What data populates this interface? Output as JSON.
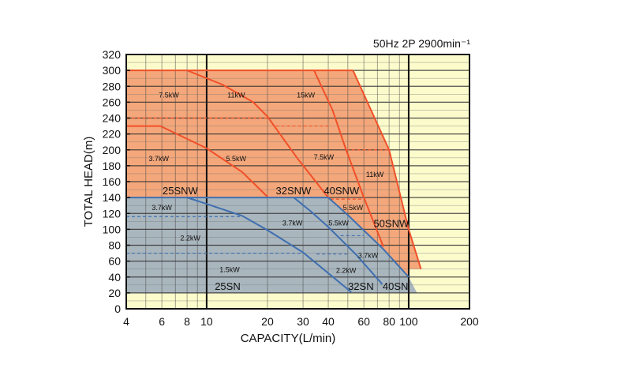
{
  "chart_data": {
    "type": "line",
    "title": "50Hz 2P 2900min⁻¹",
    "xlabel": "CAPACITY(L/min)",
    "ylabel": "TOTAL HEAD(m)",
    "xscale": "log",
    "xlim": [
      4,
      200
    ],
    "ylim": [
      0,
      320
    ],
    "grid": true,
    "xticks": [
      4,
      6,
      8,
      10,
      20,
      30,
      40,
      60,
      80,
      100,
      200
    ],
    "xtick_labels": [
      "4",
      "6",
      "8",
      "10",
      "20",
      "30",
      "40",
      "60",
      "80",
      "100",
      "200"
    ],
    "yticks": [
      0,
      20,
      40,
      60,
      80,
      100,
      120,
      140,
      160,
      180,
      200,
      220,
      240,
      260,
      280,
      300,
      320
    ],
    "colors": {
      "background": "#fbfbcc",
      "snw_region": "#f4a77a",
      "sn_region": "#a9b6be",
      "snw_line": "#f0502a",
      "sn_line": "#3f6fb0",
      "grid": "#333333"
    },
    "regions": [
      {
        "name": "SNW",
        "color": "snw_region",
        "points": [
          [
            4,
            300
          ],
          [
            53,
            300
          ],
          [
            80,
            200
          ],
          [
            100,
            100
          ],
          [
            115,
            50
          ],
          [
            100,
            50
          ],
          [
            100,
            40
          ],
          [
            4,
            40
          ]
        ]
      },
      {
        "name": "SN",
        "color": "sn_region",
        "points": [
          [
            4,
            140
          ],
          [
            40,
            140
          ],
          [
            50,
            118
          ],
          [
            75,
            75
          ],
          [
            100,
            40
          ],
          [
            110,
            20
          ],
          [
            4,
            20
          ]
        ]
      }
    ],
    "curves": [
      {
        "name": "25SNW 3.7kW limit",
        "color": "snw_line",
        "points": [
          [
            4,
            230
          ],
          [
            5.9,
            230
          ],
          [
            10,
            202
          ],
          [
            15,
            172
          ],
          [
            20,
            141
          ]
        ]
      },
      {
        "name": "25SNW/32SNW limit",
        "color": "snw_line",
        "points": [
          [
            8,
            300
          ],
          [
            12,
            282
          ],
          [
            17,
            260
          ],
          [
            20,
            242
          ],
          [
            28,
            190
          ],
          [
            40,
            140
          ]
        ]
      },
      {
        "name": "40SNW limit",
        "color": "snw_line",
        "points": [
          [
            34,
            300
          ],
          [
            42,
            250
          ],
          [
            49,
            200
          ],
          [
            60,
            140
          ],
          [
            75,
            78
          ]
        ]
      },
      {
        "name": "50SNW limit",
        "color": "snw_line",
        "points": [
          [
            53,
            300
          ],
          [
            80,
            200
          ],
          [
            100,
            100
          ],
          [
            115,
            50
          ]
        ]
      },
      {
        "name": "SNW top",
        "color": "snw_line",
        "points": [
          [
            4,
            300
          ],
          [
            53,
            300
          ]
        ]
      },
      {
        "name": "25SN limit",
        "color": "sn_line",
        "points": [
          [
            8,
            140
          ],
          [
            10,
            132
          ],
          [
            15,
            117
          ],
          [
            20,
            99
          ],
          [
            30,
            71
          ],
          [
            52,
            21
          ]
        ]
      },
      {
        "name": "32SN limit",
        "color": "sn_line",
        "points": [
          [
            27,
            140
          ],
          [
            33,
            122
          ],
          [
            40,
            103
          ],
          [
            55,
            68
          ],
          [
            74,
            31
          ]
        ]
      },
      {
        "name": "40SN limit",
        "color": "sn_line",
        "points": [
          [
            40,
            140
          ],
          [
            50,
            118
          ],
          [
            75,
            75
          ],
          [
            100,
            40
          ]
        ]
      },
      {
        "name": "SN top",
        "color": "sn_line",
        "points": [
          [
            4,
            140
          ],
          [
            40,
            140
          ]
        ]
      }
    ],
    "dashed": [
      {
        "color": "snw_line",
        "y": 240,
        "x": [
          4,
          20
        ]
      },
      {
        "color": "snw_line",
        "y": 230,
        "x": [
          22,
          40
        ]
      },
      {
        "color": "snw_line",
        "y": 200,
        "x": [
          49,
          80
        ]
      },
      {
        "color": "snw_line",
        "y": 138,
        "x": [
          41,
          60
        ]
      },
      {
        "color": "sn_line",
        "y": 116,
        "x": [
          4,
          15
        ]
      },
      {
        "color": "sn_line",
        "y": 92,
        "x": [
          46,
          60
        ]
      },
      {
        "color": "sn_line",
        "y": 70,
        "x": [
          4,
          30
        ]
      },
      {
        "color": "sn_line",
        "y": 69,
        "x": [
          35,
          51
        ]
      }
    ],
    "annotations": [
      {
        "text": "7.5kW",
        "x": 6.5,
        "y": 270,
        "kind": "lbl"
      },
      {
        "text": "11kW",
        "x": 14,
        "y": 270,
        "kind": "lbl"
      },
      {
        "text": "15kW",
        "x": 31,
        "y": 270,
        "kind": "lbl"
      },
      {
        "text": "3.7kW",
        "x": 5.8,
        "y": 190,
        "kind": "lbl"
      },
      {
        "text": "5.5kW",
        "x": 14,
        "y": 190,
        "kind": "lbl"
      },
      {
        "text": "7.5kW",
        "x": 38,
        "y": 192,
        "kind": "lbl"
      },
      {
        "text": "11kW",
        "x": 68,
        "y": 170,
        "kind": "lbl"
      },
      {
        "text": "25SNW",
        "x": 7.4,
        "y": 148,
        "kind": "model"
      },
      {
        "text": "32SNW",
        "x": 26.9,
        "y": 148,
        "kind": "model"
      },
      {
        "text": "40SNW",
        "x": 46.5,
        "y": 148,
        "kind": "model"
      },
      {
        "text": "5.5kW",
        "x": 53,
        "y": 128,
        "kind": "lbl"
      },
      {
        "text": "50SNW",
        "x": 82,
        "y": 107,
        "kind": "model"
      },
      {
        "text": "3.7kW",
        "x": 6.0,
        "y": 128,
        "kind": "lbl"
      },
      {
        "text": "3.7kW",
        "x": 26.6,
        "y": 109,
        "kind": "lbl"
      },
      {
        "text": "5.5kW",
        "x": 45,
        "y": 109,
        "kind": "lbl"
      },
      {
        "text": "2.2kW",
        "x": 8.3,
        "y": 90,
        "kind": "lbl"
      },
      {
        "text": "3.7kW",
        "x": 63,
        "y": 68,
        "kind": "lbl"
      },
      {
        "text": "1.5kW",
        "x": 13,
        "y": 50,
        "kind": "lbl"
      },
      {
        "text": "2.2kW",
        "x": 49,
        "y": 49,
        "kind": "lbl"
      },
      {
        "text": "25SN",
        "x": 12.7,
        "y": 28,
        "kind": "model"
      },
      {
        "text": "32SN",
        "x": 58,
        "y": 28,
        "kind": "model"
      },
      {
        "text": "40SN",
        "x": 86,
        "y": 28,
        "kind": "model"
      }
    ]
  }
}
